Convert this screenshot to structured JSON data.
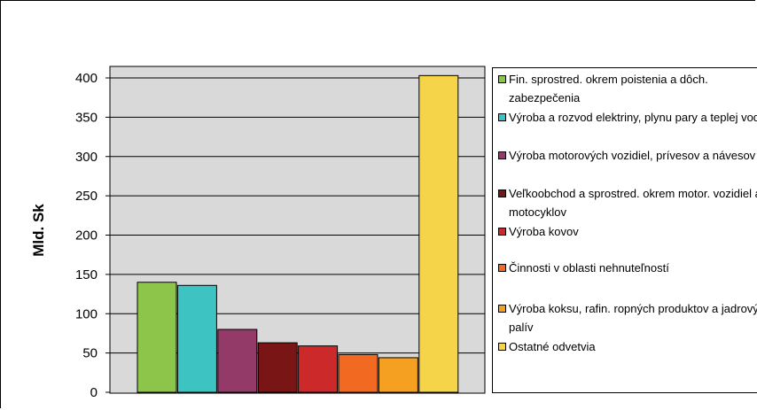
{
  "chart_data": {
    "type": "bar",
    "ylabel": "Mld. Sk",
    "ylim": [
      0,
      400
    ],
    "yticks": [
      0,
      50,
      100,
      150,
      200,
      250,
      300,
      350,
      400
    ],
    "grid": true,
    "legend_position": "right",
    "plot_background": "#d9d9d9",
    "series": [
      {
        "name": "Fin. sprostred. okrem poistenia a dôch. zabezpečenia",
        "value": 140,
        "color": "#8dc44a"
      },
      {
        "name": "Výroba a rozvod elektriny, plynu pary a teplej vody",
        "value": 136,
        "color": "#3ec3c3"
      },
      {
        "name": "Výroba motorových vozidiel, prívesov a návesov",
        "value": 80,
        "color": "#943a68"
      },
      {
        "name": "Veľkoobchod a sprostred. okrem motor. vozidiel a motocyklov",
        "value": 63,
        "color": "#7a1515"
      },
      {
        "name": "Výroba kovov",
        "value": 59,
        "color": "#cc2a2a"
      },
      {
        "name": "Činnosti v oblasti nehnuteľností",
        "value": 48,
        "color": "#f26a22"
      },
      {
        "name": "Výroba koksu, rafin. ropných produktov a jadrových palív",
        "value": 44,
        "color": "#f5a020"
      },
      {
        "name": "Ostatné odvetvia",
        "value": 403,
        "color": "#f5d44a"
      }
    ]
  }
}
